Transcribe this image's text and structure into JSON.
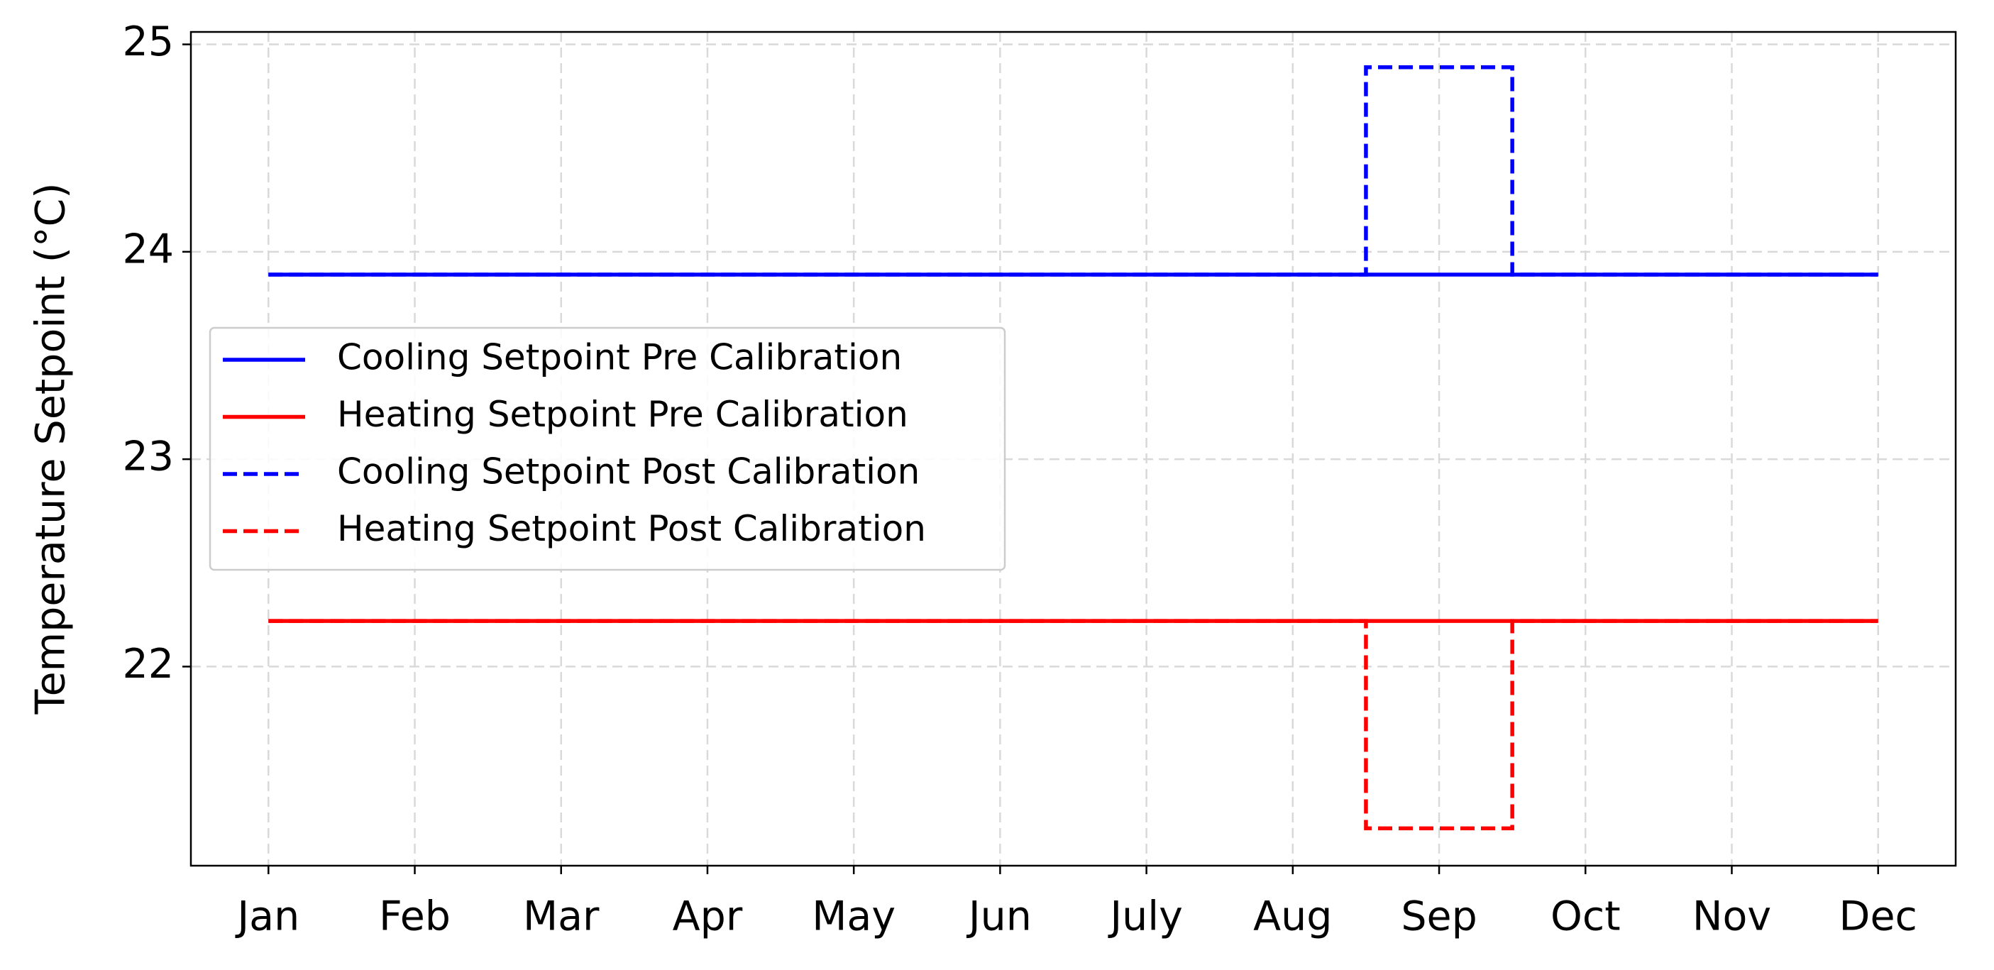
{
  "chart_data": {
    "type": "line",
    "ylabel": "Temperature Setpoint (°C)",
    "xlim": [
      -0.53,
      11.53
    ],
    "xticks": [
      {
        "value": 0,
        "label": "Jan"
      },
      {
        "value": 1,
        "label": "Feb"
      },
      {
        "value": 2,
        "label": "Mar"
      },
      {
        "value": 3,
        "label": "Apr"
      },
      {
        "value": 4,
        "label": "May"
      },
      {
        "value": 5,
        "label": "Jun"
      },
      {
        "value": 6,
        "label": "July"
      },
      {
        "value": 7,
        "label": "Aug"
      },
      {
        "value": 8,
        "label": "Sep"
      },
      {
        "value": 9,
        "label": "Oct"
      },
      {
        "value": 10,
        "label": "Nov"
      },
      {
        "value": 11,
        "label": "Dec"
      }
    ],
    "ylim": [
      21.04,
      25.06
    ],
    "yticks": [
      22,
      23,
      24,
      25
    ],
    "grid": true,
    "legend": "center left",
    "series": [
      {
        "name": "Cooling Setpoint Pre Calibration",
        "color": "#0000ff",
        "linestyle": "solid",
        "x": [
          0,
          11
        ],
        "values": [
          23.89,
          23.89
        ]
      },
      {
        "name": "Heating Setpoint Pre Calibration",
        "color": "#ff0000",
        "linestyle": "solid",
        "x": [
          0,
          11
        ],
        "values": [
          22.22,
          22.22
        ]
      },
      {
        "name": "Cooling Setpoint Post Calibration",
        "color": "#0000ff",
        "linestyle": "dashed",
        "x": [
          0,
          7.5,
          7.5,
          8.5,
          8.5,
          11
        ],
        "values": [
          23.89,
          23.89,
          24.89,
          24.89,
          23.89,
          23.89
        ]
      },
      {
        "name": "Heating Setpoint Post Calibration",
        "color": "#ff0000",
        "linestyle": "dashed",
        "x": [
          0,
          7.5,
          7.5,
          8.5,
          8.5,
          11
        ],
        "values": [
          22.22,
          22.22,
          21.22,
          21.22,
          22.22,
          22.22
        ]
      }
    ]
  }
}
